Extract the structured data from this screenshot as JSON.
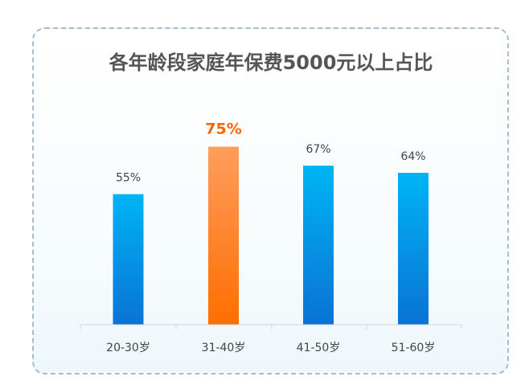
{
  "chart_data": {
    "type": "bar",
    "title": "各年龄段家庭年保费5000元以上占比",
    "categories": [
      "20-30岁",
      "31-40岁",
      "41-50岁",
      "51-60岁"
    ],
    "values": [
      55,
      75,
      67,
      64
    ],
    "value_labels": [
      "55%",
      "75%",
      "67%",
      "64%"
    ],
    "unit": "%",
    "highlight_index": 1,
    "ylim": [
      0,
      100
    ],
    "grid": false,
    "legend": "none",
    "colors": {
      "bar_top": "#00b4f5",
      "bar_bottom": "#0a73d4",
      "highlight_top": "#ff9d5c",
      "highlight_bottom": "#ff6e00",
      "highlight_label": "#ff6600",
      "label": "#444444",
      "title": "#555555",
      "axis": "#cfd6dc"
    }
  }
}
